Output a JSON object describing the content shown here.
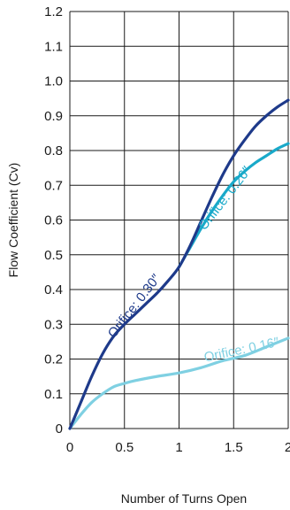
{
  "chart_data": {
    "type": "line",
    "title": "",
    "xlabel": "Number of Turns Open",
    "ylabel": "Flow Coefficient (Cv)",
    "xlim": [
      0,
      2
    ],
    "ylim": [
      0,
      1.2
    ],
    "x_ticks": [
      "0",
      "0.5",
      "1",
      "1.5",
      "2"
    ],
    "y_ticks": [
      "0",
      "0.1",
      "0.2",
      "0.3",
      "0.4",
      "0.5",
      "0.6",
      "0.7",
      "0.8",
      "0.9",
      "1.0",
      "1.1",
      "1.2"
    ],
    "grid": true,
    "series": [
      {
        "name": "Orifice:  0.30″",
        "color": "#1e3a8a",
        "x": [
          0,
          0.1,
          0.2,
          0.3,
          0.4,
          0.5,
          0.6,
          0.7,
          0.8,
          0.9,
          1.0,
          1.1,
          1.2,
          1.3,
          1.4,
          1.5,
          1.6,
          1.7,
          1.8,
          1.9,
          2.0
        ],
        "y": [
          0,
          0.075,
          0.15,
          0.215,
          0.265,
          0.3,
          0.33,
          0.36,
          0.39,
          0.425,
          0.465,
          0.525,
          0.595,
          0.665,
          0.73,
          0.785,
          0.83,
          0.87,
          0.9,
          0.925,
          0.945
        ]
      },
      {
        "name": "Orifice:  0.26″",
        "color": "#19a9c9",
        "x": [
          1.0,
          1.1,
          1.2,
          1.3,
          1.4,
          1.5,
          1.6,
          1.7,
          1.8,
          1.9,
          2.0
        ],
        "y": [
          0.465,
          0.52,
          0.575,
          0.625,
          0.67,
          0.71,
          0.74,
          0.765,
          0.785,
          0.805,
          0.82
        ]
      },
      {
        "name": "Orifice:  0.16″",
        "color": "#7fd0e2",
        "x": [
          0,
          0.1,
          0.2,
          0.3,
          0.4,
          0.5,
          0.6,
          0.8,
          1.0,
          1.2,
          1.4,
          1.6,
          1.8,
          2.0
        ],
        "y": [
          0,
          0.04,
          0.075,
          0.1,
          0.12,
          0.13,
          0.138,
          0.15,
          0.16,
          0.175,
          0.195,
          0.21,
          0.235,
          0.26
        ]
      }
    ]
  }
}
